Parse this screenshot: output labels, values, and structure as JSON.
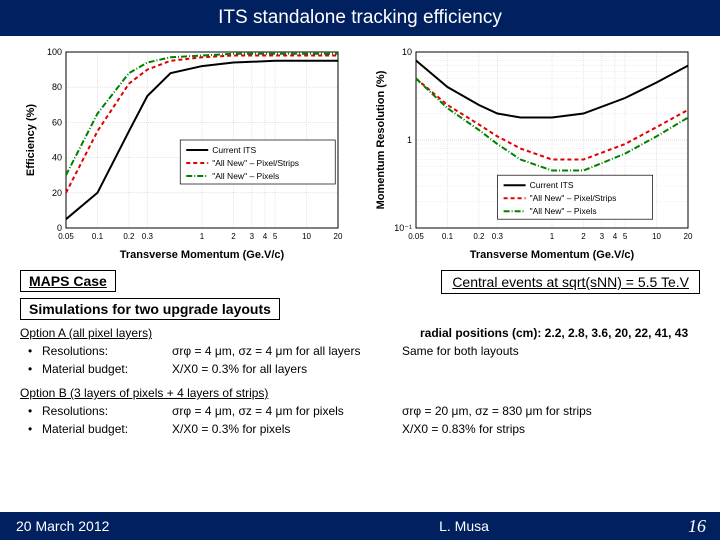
{
  "title": "ITS standalone tracking efficiency",
  "footer": {
    "date": "20 March 2012",
    "author": "L. Musa",
    "page": "16"
  },
  "labels": {
    "maps_case": "MAPS Case",
    "central": "Central events at sqrt(sNN) = 5.5 Te.V",
    "sim_layouts": "Simulations for two upgrade layouts",
    "optA_header": "Option A (all pixel layers)",
    "optA_res_label": "Resolutions:",
    "optA_res_val": "σrφ = 4 μm, σz = 4 μm for all layers",
    "optA_mat_label": "Material budget:",
    "optA_mat_val": "X/X0 = 0.3% for all layers",
    "radial": "radial positions (cm): 2.2, 2.8, 3.6, 20, 22, 41, 43",
    "radial_note": "Same for both layouts",
    "optB_header": "Option B (3 layers of pixels + 4 layers of strips)",
    "optB_res_label": "Resolutions:",
    "optB_res_val": "σrφ = 4 μm, σz = 4 μm for pixels",
    "optB_res_right": "σrφ = 20 μm, σz = 830 μm for strips",
    "optB_mat_label": "Material budget:",
    "optB_mat_val": "X/X0 = 0.3% for pixels",
    "optB_mat_right": "X/X0 = 0.83% for strips"
  },
  "chart_left": {
    "type": "line",
    "xlabel": "Transverse Momentum (Ge.V/c)",
    "ylabel": "Efficiency (%)",
    "xscale": "log",
    "xlim": [
      0.05,
      20
    ],
    "ylim": [
      0,
      100
    ],
    "xticks": [
      "0.05",
      "0.1",
      "0.2",
      "0.3",
      "1",
      "2",
      "3",
      "4",
      "5",
      "10",
      "20"
    ],
    "yticks": [
      0,
      20,
      40,
      60,
      80,
      100
    ],
    "ytick_step": 20,
    "grid_color": "#cccccc",
    "bg": "#ffffff",
    "axis_fontsize": 10,
    "label_fontsize": 11,
    "legend_fontsize": 9,
    "series": [
      {
        "name": "Current ITS",
        "color": "#000000",
        "dash": "none",
        "width": 2,
        "x": [
          0.05,
          0.1,
          0.2,
          0.3,
          0.5,
          1,
          2,
          5,
          10,
          20
        ],
        "y": [
          5,
          20,
          55,
          75,
          88,
          92,
          94,
          95,
          95,
          95
        ]
      },
      {
        "name": "\"All New\" – Pixel/Strips",
        "color": "#e00000",
        "dash": "4,3",
        "width": 2,
        "x": [
          0.05,
          0.1,
          0.2,
          0.3,
          0.5,
          1,
          2,
          5,
          10,
          20
        ],
        "y": [
          20,
          55,
          82,
          90,
          95,
          97,
          98,
          98,
          98,
          98
        ]
      },
      {
        "name": "\"All New\" – Pixels",
        "color": "#008000",
        "dash": "6,2,1,2",
        "width": 2,
        "x": [
          0.05,
          0.1,
          0.2,
          0.3,
          0.5,
          1,
          2,
          5,
          10,
          20
        ],
        "y": [
          30,
          65,
          88,
          94,
          97,
          98,
          99,
          99,
          99,
          99
        ]
      }
    ],
    "legend_pos": "center-right"
  },
  "chart_right": {
    "type": "line",
    "xlabel": "Transverse Momentum (Ge.V/c)",
    "ylabel": "Momentum Resolution (%)",
    "xscale": "log",
    "yscale": "log",
    "xlim": [
      0.05,
      20
    ],
    "ylim": [
      0.1,
      10
    ],
    "xticks": [
      "0.05",
      "0.1",
      "0.2",
      "0.3",
      "1",
      "2",
      "3",
      "4",
      "5",
      "10",
      "20"
    ],
    "yticks_minor_grid": true,
    "grid_color": "#cccccc",
    "bg": "#ffffff",
    "axis_fontsize": 10,
    "label_fontsize": 11,
    "legend_fontsize": 9,
    "series": [
      {
        "name": "Current ITS",
        "color": "#000000",
        "dash": "none",
        "width": 2,
        "x": [
          0.05,
          0.1,
          0.2,
          0.3,
          0.5,
          1,
          2,
          5,
          10,
          20
        ],
        "y": [
          8,
          4,
          2.5,
          2,
          1.8,
          1.8,
          2,
          3,
          4.5,
          7
        ]
      },
      {
        "name": "\"All New\" – Pixel/Strips",
        "color": "#e00000",
        "dash": "4,3",
        "width": 2,
        "x": [
          0.05,
          0.1,
          0.2,
          0.3,
          0.5,
          1,
          2,
          5,
          10,
          20
        ],
        "y": [
          5,
          2.5,
          1.5,
          1.1,
          0.8,
          0.6,
          0.6,
          0.9,
          1.4,
          2.2
        ]
      },
      {
        "name": "\"All New\" – Pixels",
        "color": "#008000",
        "dash": "6,2,1,2",
        "width": 2,
        "x": [
          0.05,
          0.1,
          0.2,
          0.3,
          0.5,
          1,
          2,
          5,
          10,
          20
        ],
        "y": [
          5,
          2.3,
          1.3,
          0.9,
          0.6,
          0.45,
          0.45,
          0.7,
          1.1,
          1.8
        ]
      }
    ],
    "legend_pos": "bottom-center"
  },
  "colors": {
    "title_bg": "#002060",
    "title_fg": "#ffffff",
    "body_bg": "#ffffff"
  }
}
